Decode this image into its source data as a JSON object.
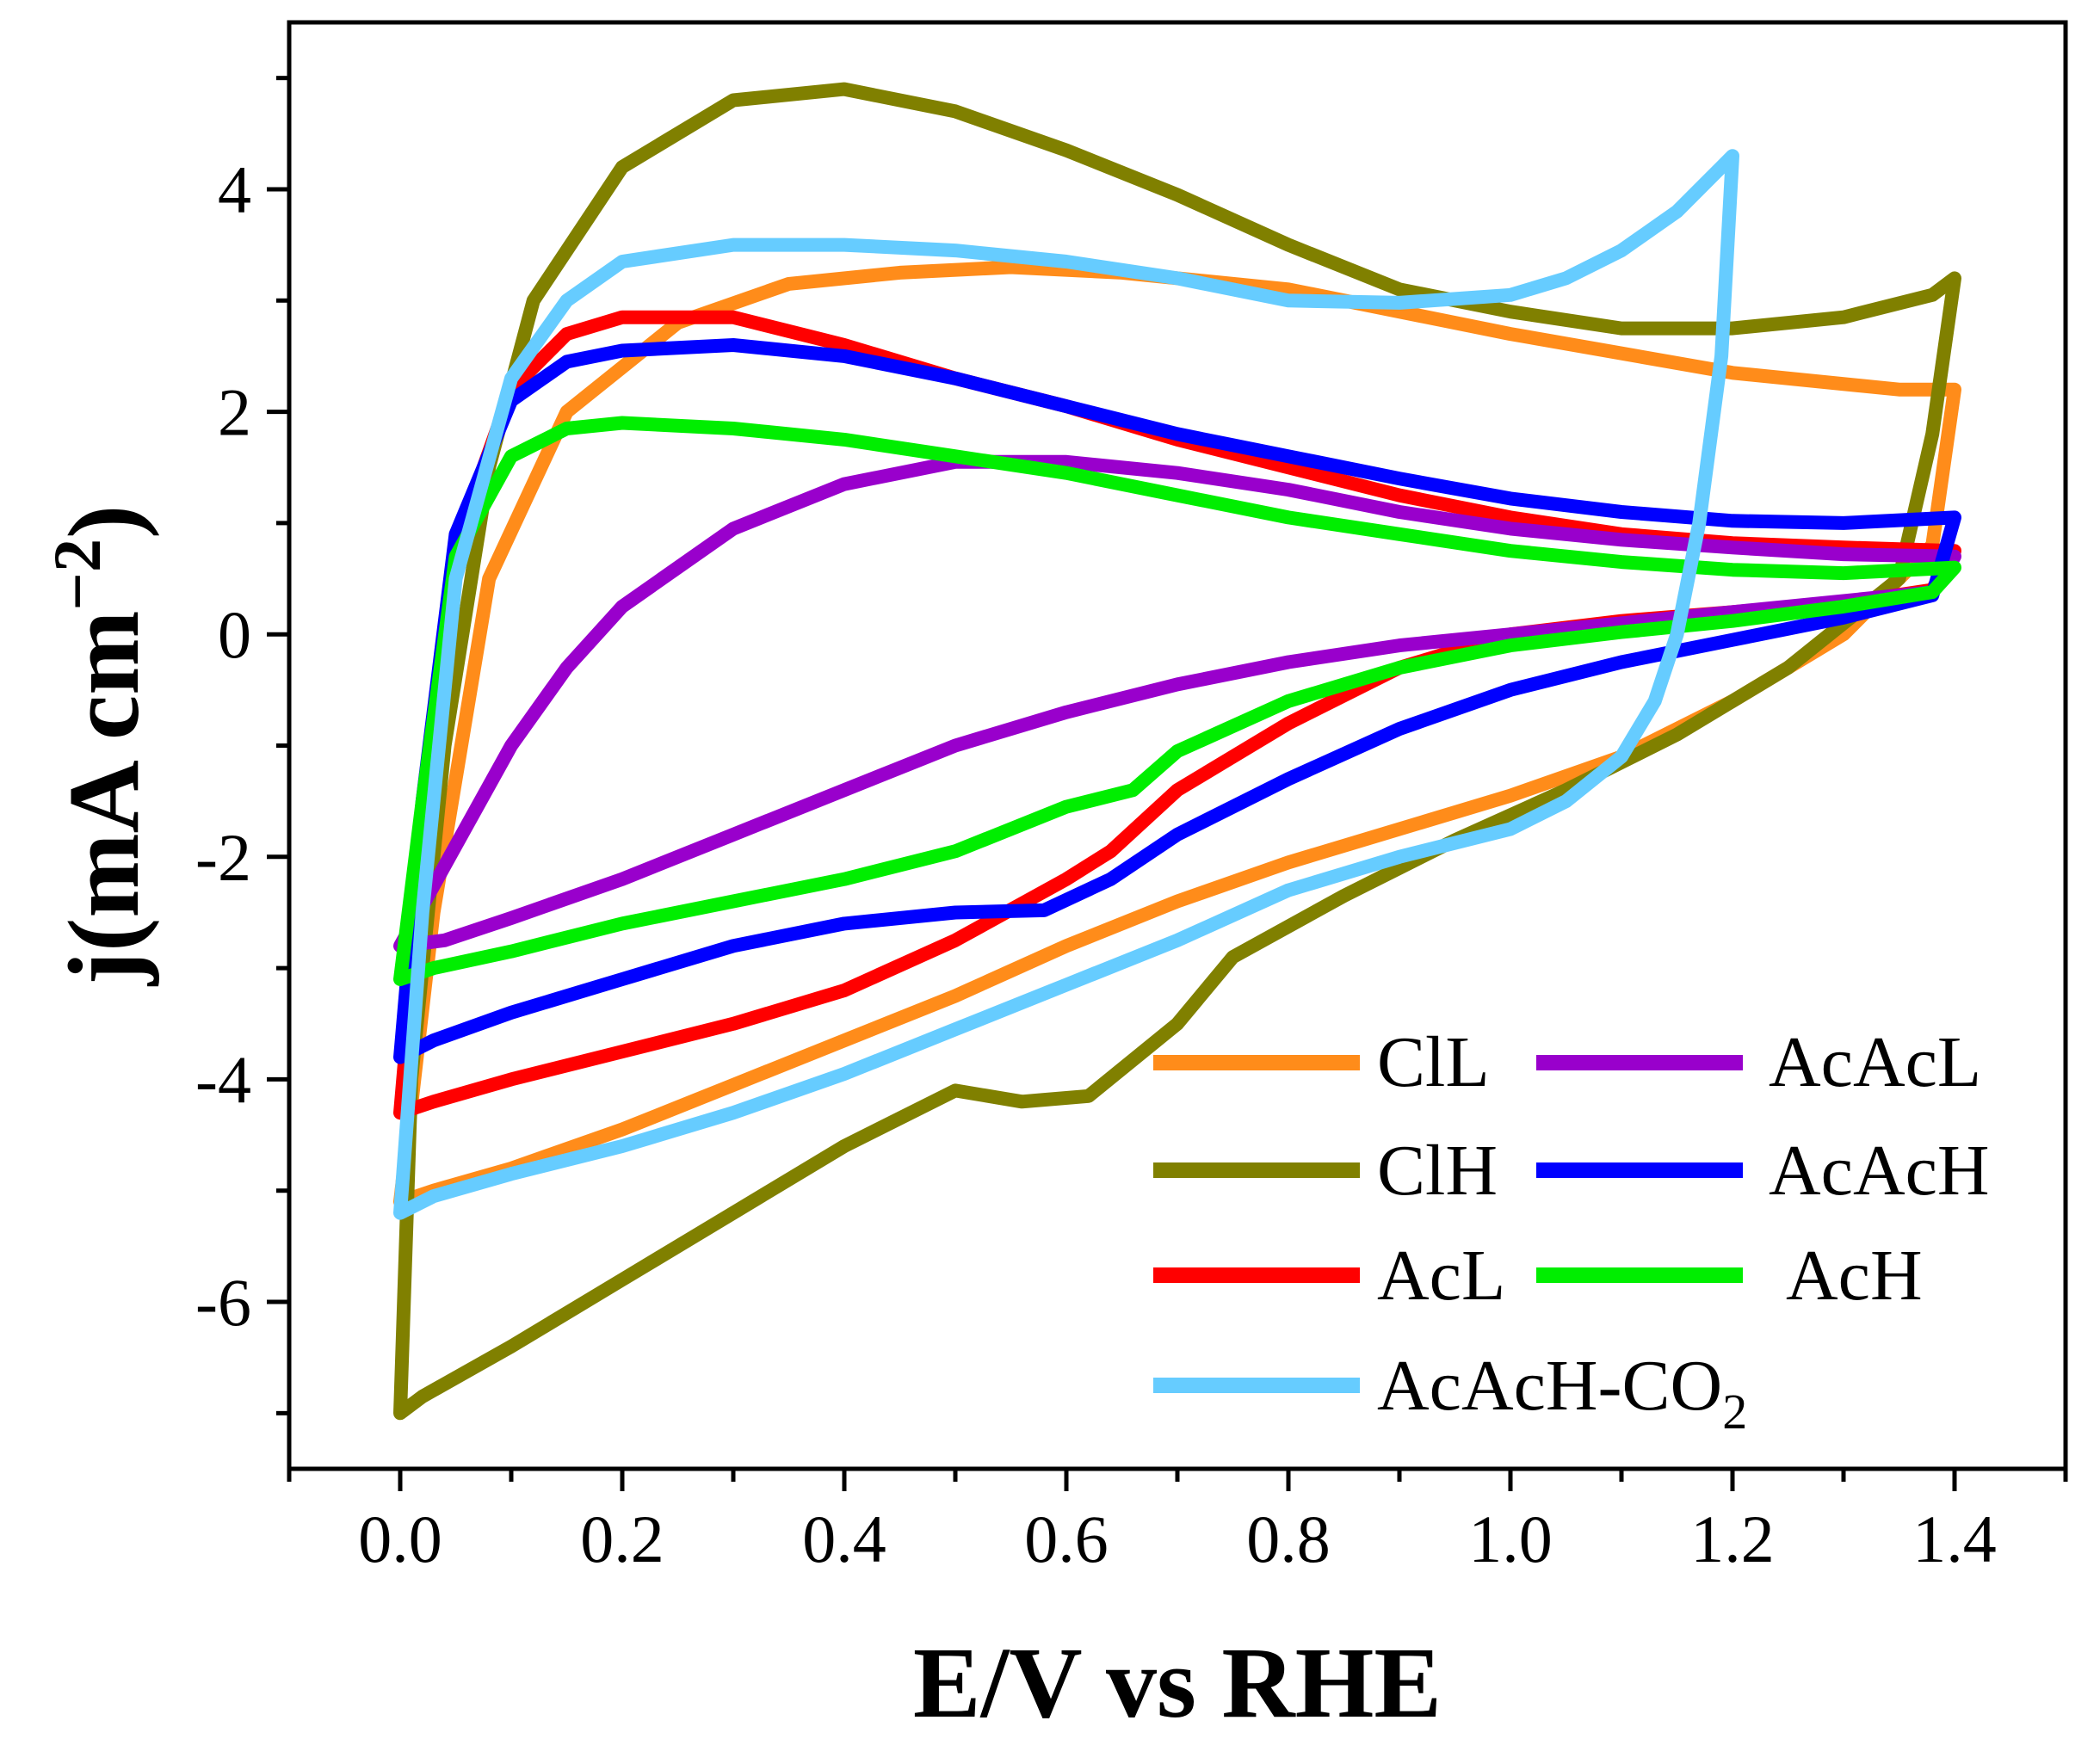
{
  "chart_data": {
    "type": "line",
    "title": "",
    "xlabel": "E/V vs RHE",
    "ylabel": "j(mA cm",
    "ylabel_sup": "−2",
    "ylabel_close": ")",
    "xlim": [
      -0.1,
      1.5
    ],
    "ylim": [
      -7.5,
      5.5
    ],
    "x_ticks": [
      0.0,
      0.2,
      0.4,
      0.6,
      0.8,
      1.0,
      1.2,
      1.4
    ],
    "x_tick_labels": [
      "0.0",
      "0.2",
      "0.4",
      "0.6",
      "0.8",
      "1.0",
      "1.2",
      "1.4"
    ],
    "y_ticks": [
      -6,
      -4,
      -2,
      0,
      2,
      4
    ],
    "y_tick_labels": [
      "-6",
      "-4",
      "-2",
      "0",
      "2",
      "4"
    ],
    "grid": false,
    "legend_position": "bottom-right",
    "series": [
      {
        "name": "ClL",
        "color": "#FF8C1A",
        "x": [
          0.0,
          0.03,
          0.08,
          0.15,
          0.25,
          0.35,
          0.45,
          0.55,
          0.65,
          0.8,
          1.0,
          1.2,
          1.35,
          1.4,
          1.38,
          1.3,
          1.2,
          1.1,
          1.0,
          0.9,
          0.8,
          0.7,
          0.6,
          0.5,
          0.4,
          0.3,
          0.2,
          0.1,
          0.03,
          0.0
        ],
        "y": [
          -5.1,
          -2.5,
          0.5,
          2.0,
          2.8,
          3.15,
          3.25,
          3.3,
          3.25,
          3.1,
          2.7,
          2.35,
          2.2,
          2.2,
          0.8,
          0.0,
          -0.6,
          -1.1,
          -1.45,
          -1.75,
          -2.05,
          -2.4,
          -2.8,
          -3.25,
          -3.65,
          -4.05,
          -4.45,
          -4.8,
          -5.0,
          -5.1
        ]
      },
      {
        "name": "ClH",
        "color": "#808000",
        "x": [
          0.0,
          0.01,
          0.04,
          0.08,
          0.12,
          0.2,
          0.3,
          0.4,
          0.5,
          0.6,
          0.7,
          0.8,
          0.9,
          1.0,
          1.1,
          1.2,
          1.3,
          1.38,
          1.4,
          1.38,
          1.35,
          1.25,
          1.15,
          1.05,
          0.95,
          0.85,
          0.75,
          0.7,
          0.62,
          0.56,
          0.5,
          0.4,
          0.3,
          0.2,
          0.1,
          0.02,
          0.0
        ],
        "y": [
          -7.0,
          -4.0,
          -1.0,
          1.5,
          3.0,
          4.2,
          4.8,
          4.9,
          4.7,
          4.35,
          3.95,
          3.5,
          3.1,
          2.9,
          2.75,
          2.75,
          2.85,
          3.05,
          3.2,
          1.8,
          0.5,
          -0.3,
          -0.9,
          -1.4,
          -1.85,
          -2.35,
          -2.9,
          -3.5,
          -4.15,
          -4.2,
          -4.1,
          -4.6,
          -5.2,
          -5.8,
          -6.4,
          -6.85,
          -7.0
        ]
      },
      {
        "name": "AcL",
        "color": "#FF0000",
        "x": [
          0.0,
          0.02,
          0.05,
          0.1,
          0.15,
          0.2,
          0.3,
          0.4,
          0.5,
          0.6,
          0.7,
          0.8,
          0.9,
          1.0,
          1.1,
          1.2,
          1.3,
          1.4,
          1.38,
          1.3,
          1.2,
          1.1,
          1.0,
          0.9,
          0.8,
          0.7,
          0.64,
          0.6,
          0.5,
          0.4,
          0.3,
          0.2,
          0.1,
          0.03,
          0.0
        ],
        "y": [
          -4.3,
          -2.0,
          0.8,
          2.2,
          2.7,
          2.85,
          2.85,
          2.6,
          2.3,
          2.05,
          1.75,
          1.5,
          1.25,
          1.05,
          0.9,
          0.82,
          0.78,
          0.75,
          0.4,
          0.28,
          0.2,
          0.12,
          0.0,
          -0.3,
          -0.8,
          -1.4,
          -1.95,
          -2.2,
          -2.75,
          -3.2,
          -3.5,
          -3.75,
          -4.0,
          -4.2,
          -4.3
        ]
      },
      {
        "name": "AcAcL",
        "color": "#9900CC",
        "x": [
          0.0,
          0.05,
          0.1,
          0.15,
          0.2,
          0.3,
          0.4,
          0.5,
          0.6,
          0.7,
          0.8,
          0.9,
          1.0,
          1.1,
          1.2,
          1.3,
          1.4,
          1.38,
          1.3,
          1.2,
          1.1,
          1.0,
          0.9,
          0.8,
          0.7,
          0.6,
          0.5,
          0.4,
          0.3,
          0.2,
          0.1,
          0.04,
          0.0
        ],
        "y": [
          -2.8,
          -1.9,
          -1.0,
          -0.3,
          0.25,
          0.95,
          1.35,
          1.55,
          1.55,
          1.45,
          1.3,
          1.1,
          0.95,
          0.85,
          0.78,
          0.72,
          0.7,
          0.38,
          0.3,
          0.2,
          0.1,
          0.0,
          -0.1,
          -0.25,
          -0.45,
          -0.7,
          -1.0,
          -1.4,
          -1.8,
          -2.2,
          -2.55,
          -2.75,
          -2.8
        ]
      },
      {
        "name": "AcAcH",
        "color": "#0000FF",
        "x": [
          0.0,
          0.02,
          0.05,
          0.1,
          0.15,
          0.2,
          0.3,
          0.4,
          0.5,
          0.6,
          0.7,
          0.8,
          0.9,
          1.0,
          1.1,
          1.2,
          1.3,
          1.4,
          1.38,
          1.3,
          1.2,
          1.1,
          1.0,
          0.9,
          0.8,
          0.7,
          0.64,
          0.58,
          0.5,
          0.4,
          0.3,
          0.2,
          0.1,
          0.03,
          0.0
        ],
        "y": [
          -3.8,
          -1.5,
          0.9,
          2.1,
          2.45,
          2.55,
          2.6,
          2.5,
          2.3,
          2.05,
          1.8,
          1.6,
          1.4,
          1.22,
          1.1,
          1.02,
          1.0,
          1.05,
          0.35,
          0.15,
          -0.05,
          -0.25,
          -0.5,
          -0.85,
          -1.3,
          -1.8,
          -2.2,
          -2.48,
          -2.5,
          -2.6,
          -2.8,
          -3.1,
          -3.4,
          -3.65,
          -3.8
        ]
      },
      {
        "name": "AcH",
        "color": "#00EE00",
        "x": [
          0.0,
          0.02,
          0.05,
          0.1,
          0.15,
          0.2,
          0.3,
          0.4,
          0.5,
          0.6,
          0.7,
          0.8,
          0.9,
          1.0,
          1.1,
          1.2,
          1.3,
          1.4,
          1.38,
          1.3,
          1.2,
          1.1,
          1.0,
          0.9,
          0.8,
          0.7,
          0.66,
          0.6,
          0.5,
          0.4,
          0.3,
          0.2,
          0.1,
          0.03,
          0.0
        ],
        "y": [
          -3.1,
          -1.5,
          0.7,
          1.6,
          1.85,
          1.9,
          1.85,
          1.75,
          1.6,
          1.45,
          1.25,
          1.05,
          0.9,
          0.75,
          0.65,
          0.58,
          0.55,
          0.6,
          0.38,
          0.25,
          0.12,
          0.02,
          -0.1,
          -0.3,
          -0.6,
          -1.05,
          -1.4,
          -1.55,
          -1.95,
          -2.2,
          -2.4,
          -2.6,
          -2.85,
          -3.0,
          -3.1
        ]
      },
      {
        "name": "AcAcH-CO",
        "name_sub": "2",
        "color": "#66CCFF",
        "x": [
          0.0,
          0.02,
          0.05,
          0.1,
          0.15,
          0.2,
          0.3,
          0.4,
          0.5,
          0.6,
          0.7,
          0.8,
          0.9,
          1.0,
          1.05,
          1.1,
          1.15,
          1.19,
          1.2,
          1.19,
          1.17,
          1.15,
          1.13,
          1.1,
          1.05,
          1.0,
          0.9,
          0.8,
          0.7,
          0.6,
          0.5,
          0.4,
          0.3,
          0.2,
          0.1,
          0.03,
          0.0
        ],
        "y": [
          -5.2,
          -2.5,
          0.5,
          2.3,
          3.0,
          3.35,
          3.5,
          3.5,
          3.45,
          3.35,
          3.2,
          3.0,
          2.98,
          3.05,
          3.2,
          3.45,
          3.8,
          4.2,
          4.3,
          2.5,
          1.0,
          0.0,
          -0.6,
          -1.1,
          -1.5,
          -1.75,
          -2.0,
          -2.3,
          -2.75,
          -3.15,
          -3.55,
          -3.95,
          -4.3,
          -4.6,
          -4.85,
          -5.05,
          -5.2
        ]
      }
    ]
  }
}
